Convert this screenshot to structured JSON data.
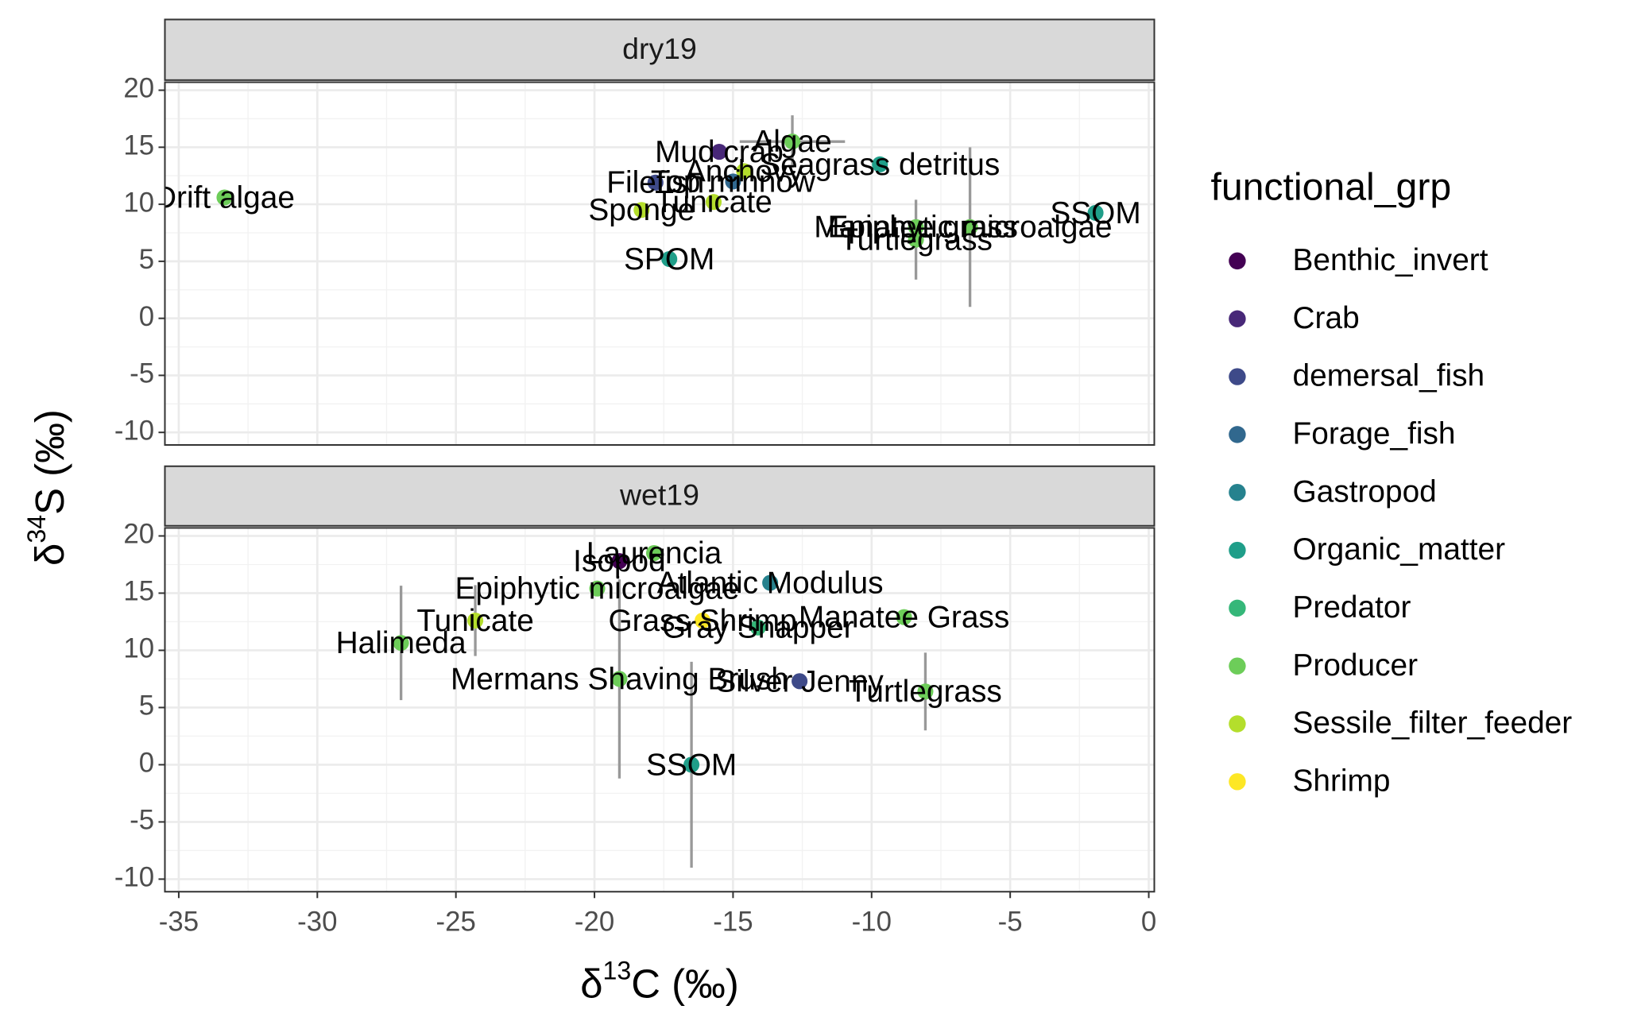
{
  "chart_data": {
    "type": "scatter",
    "x_label": [
      "δ",
      "13",
      "C (‰)"
    ],
    "y_label": [
      "δ",
      "34",
      "S (‰)"
    ],
    "legend_title": "functional_grp",
    "groups": [
      {
        "name": "Benthic_invert",
        "color": "#440154"
      },
      {
        "name": "Crab",
        "color": "#482878"
      },
      {
        "name": "demersal_fish",
        "color": "#3E4A89"
      },
      {
        "name": "Forage_fish",
        "color": "#31688E"
      },
      {
        "name": "Gastropod",
        "color": "#26828E"
      },
      {
        "name": "Organic_matter",
        "color": "#1F9E89"
      },
      {
        "name": "Predator",
        "color": "#35B779"
      },
      {
        "name": "Producer",
        "color": "#6DCD59"
      },
      {
        "name": "Sessile_filter_feeder",
        "color": "#B4DE2C"
      },
      {
        "name": "Shrimp",
        "color": "#FDE725"
      }
    ],
    "xlim": [
      -35.5,
      0.2
    ],
    "xticks": [
      -35,
      -30,
      -25,
      -20,
      -15,
      -10,
      -5,
      0
    ],
    "ylim": [
      -11.1,
      20.7
    ],
    "yticks": [
      -10,
      -5,
      0,
      5,
      10,
      15,
      20
    ],
    "grid": true,
    "facets": [
      {
        "name": "dry19",
        "points": [
          {
            "label": "Drift algae",
            "group": "Producer",
            "x": -33.35,
            "y": 10.6,
            "xerr": null,
            "yerr": null
          },
          {
            "label": "Mud crab",
            "group": "Crab",
            "x": -15.5,
            "y": 14.6,
            "xerr": null,
            "yerr": null
          },
          {
            "label": "Algae",
            "group": "Producer",
            "x": -12.86,
            "y": 15.5,
            "xerr": 1.9,
            "yerr": 2.3
          },
          {
            "label": "Seagrass detritus",
            "group": "Organic_matter",
            "x": -9.7,
            "y": 13.5,
            "xerr": null,
            "yerr": null
          },
          {
            "label": "Anchovy",
            "group": "Sessile_filter_feeder",
            "x": -14.6,
            "y": 12.9,
            "xerr": null,
            "yerr": null
          },
          {
            "label": "Top minnow",
            "group": "Forage_fish",
            "x": -15.0,
            "y": 12.0,
            "xerr": null,
            "yerr": null
          },
          {
            "label": "Filefish",
            "group": "demersal_fish",
            "x": -17.8,
            "y": 11.9,
            "xerr": null,
            "yerr": null
          },
          {
            "label": "Tunicate",
            "group": "Sessile_filter_feeder",
            "x": -15.7,
            "y": 10.2,
            "xerr": null,
            "yerr": null
          },
          {
            "label": "Sponge",
            "group": "Sessile_filter_feeder",
            "x": -18.3,
            "y": 9.5,
            "xerr": null,
            "yerr": null
          },
          {
            "label": "SPOM",
            "group": "Organic_matter",
            "x": -17.3,
            "y": 5.2,
            "xerr": null,
            "yerr": null
          },
          {
            "label": "Manatee grass",
            "group": "Producer",
            "x": -8.4,
            "y": 8.0,
            "xerr": null,
            "yerr": null
          },
          {
            "label": "Epiphytic microalgae",
            "group": "Producer",
            "x": -6.45,
            "y": 8.0,
            "xerr": null,
            "yerr": 7.0
          },
          {
            "label": "Turtlegrass",
            "group": "Producer",
            "x": -8.4,
            "y": 6.9,
            "xerr": null,
            "yerr": 3.5
          },
          {
            "label": "SSOM",
            "group": "Organic_matter",
            "x": -1.92,
            "y": 9.25,
            "xerr": null,
            "yerr": null
          }
        ]
      },
      {
        "name": "wet19",
        "points": [
          {
            "label": "Laurencia",
            "group": "Producer",
            "x": -17.85,
            "y": 18.5,
            "xerr": null,
            "yerr": null
          },
          {
            "label": "Isopod",
            "group": "Benthic_invert",
            "x": -19.1,
            "y": 17.8,
            "xerr": null,
            "yerr": null
          },
          {
            "label": "Atlantic Modulus",
            "group": "Gastropod",
            "x": -13.66,
            "y": 15.9,
            "xerr": null,
            "yerr": null
          },
          {
            "label": "Epiphytic microalgae",
            "group": "Producer",
            "x": -19.9,
            "y": 15.4,
            "xerr": null,
            "yerr": null
          },
          {
            "label": "Grass Shrimp",
            "group": "Shrimp",
            "x": -16.1,
            "y": 12.6,
            "xerr": null,
            "yerr": null
          },
          {
            "label": "Gray Snapper",
            "group": "Predator",
            "x": -14.1,
            "y": 12.0,
            "xerr": null,
            "yerr": null
          },
          {
            "label": "Manatee Grass",
            "group": "Producer",
            "x": -8.83,
            "y": 12.9,
            "xerr": null,
            "yerr": null
          },
          {
            "label": "Tunicate",
            "group": "Sessile_filter_feeder",
            "x": -24.3,
            "y": 12.6,
            "xerr": null,
            "yerr": 3.1
          },
          {
            "label": "Halimeda",
            "group": "Producer",
            "x": -26.98,
            "y": 10.65,
            "xerr": null,
            "yerr": 5.0
          },
          {
            "label": "Mermans Shaving Brush",
            "group": "Producer",
            "x": -19.1,
            "y": 7.5,
            "xerr": null,
            "yerr": 8.7
          },
          {
            "label": "Silver Jenny",
            "group": "demersal_fish",
            "x": -12.6,
            "y": 7.3,
            "xerr": null,
            "yerr": null
          },
          {
            "label": "Turtlegrass",
            "group": "Producer",
            "x": -8.06,
            "y": 6.4,
            "xerr": null,
            "yerr": 3.4
          },
          {
            "label": "SSOM",
            "group": "Organic_matter",
            "x": -16.5,
            "y": 0.0,
            "xerr": null,
            "yerr": 9.0
          }
        ]
      }
    ]
  }
}
